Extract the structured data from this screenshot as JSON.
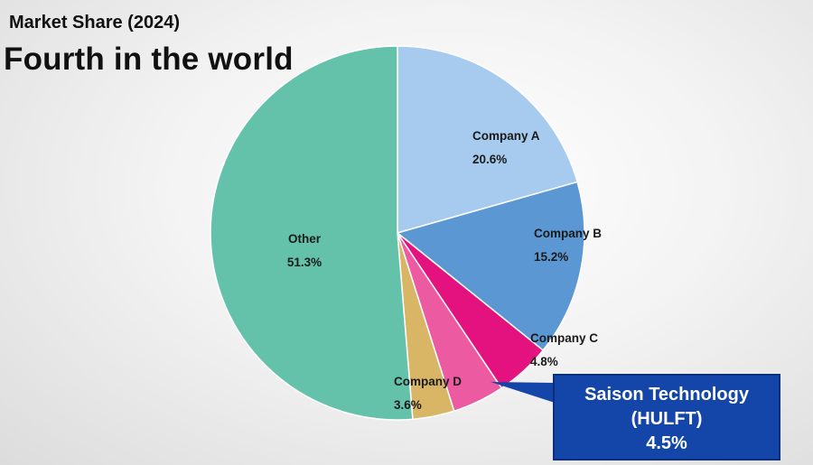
{
  "subtitle": "Market Share (2024)",
  "title": "Fourth in the world",
  "chart_data": {
    "type": "pie",
    "slices": [
      {
        "name": "Company A",
        "value": 20.6,
        "label": "20.6%",
        "color": "#a6cbee"
      },
      {
        "name": "Company B",
        "value": 15.2,
        "label": "15.2%",
        "color": "#5b98d3"
      },
      {
        "name": "Company C",
        "value": 4.8,
        "label": "4.8%",
        "color": "#e4127e"
      },
      {
        "name": "",
        "value": 4.5,
        "label": "",
        "color": "#ec5aa2"
      },
      {
        "name": "Company D",
        "value": 3.6,
        "label": "3.6%",
        "color": "#d9b665"
      },
      {
        "name": "Other",
        "value": 51.3,
        "label": "51.3%",
        "color": "#65c2aa"
      }
    ],
    "callout": {
      "line1": "Saison Technology",
      "line2": "(HULFT)",
      "line3": "4.5%",
      "color": "#1346a8"
    }
  }
}
